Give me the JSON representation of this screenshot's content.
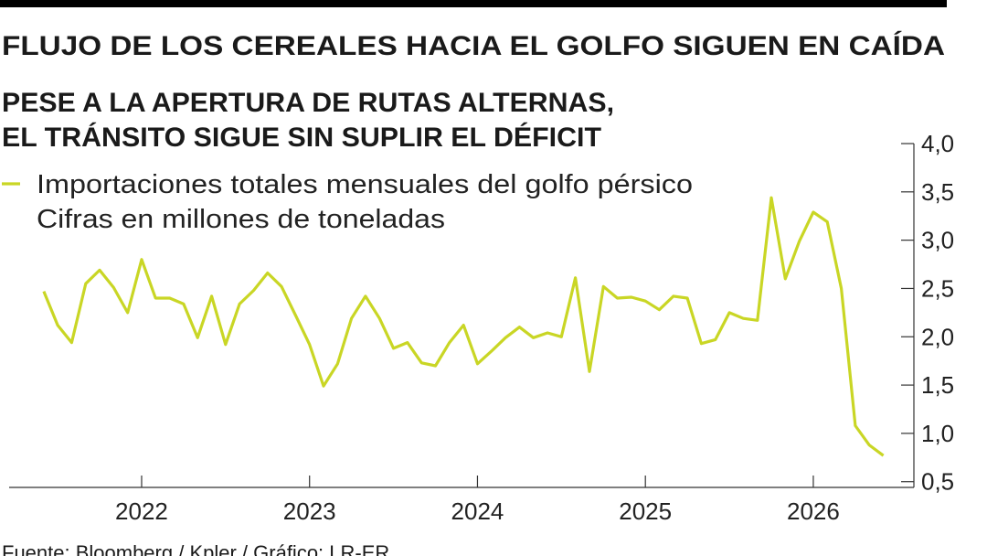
{
  "chart_data": {
    "type": "line",
    "title": "FLUJO DE LOS CEREALES HACIA EL GOLFO SIGUEN EN CAÍDA",
    "subtitle": [
      "PESE A LA APERTURA DE RUTAS ALTERNAS,",
      "EL TRÁNSITO SIGUE SIN SUPLIR EL DÉFICIT"
    ],
    "y_axis_label": "Cifras en millones de toneladas",
    "source": "Fuente: Bloomberg / Kpler / Gráfico: LR-ER",
    "x": [
      2021.417,
      2021.5,
      2021.583,
      2021.667,
      2021.75,
      2021.833,
      2021.917,
      2022.0,
      2022.083,
      2022.167,
      2022.25,
      2022.333,
      2022.417,
      2022.5,
      2022.583,
      2022.667,
      2022.75,
      2022.833,
      2022.917,
      2023.0,
      2023.083,
      2023.167,
      2023.25,
      2023.333,
      2023.417,
      2023.5,
      2023.583,
      2023.667,
      2023.75,
      2023.833,
      2023.917,
      2024.0,
      2024.083,
      2024.167,
      2024.25,
      2024.333,
      2024.417,
      2024.5,
      2024.583,
      2024.667,
      2024.75,
      2024.833,
      2024.917,
      2025.0,
      2025.083,
      2025.167,
      2025.25,
      2025.333,
      2025.417,
      2025.5,
      2025.583,
      2025.667,
      2025.75,
      2025.833,
      2025.917,
      2026.0,
      2026.083,
      2026.167,
      2026.25,
      2026.333,
      2026.417
    ],
    "series": [
      {
        "name": "Importaciones totales mensuales del golfo pérsico",
        "color": "#c9d625",
        "values": [
          2.47,
          2.12,
          1.94,
          2.55,
          2.69,
          2.51,
          2.25,
          2.8,
          2.4,
          2.4,
          2.34,
          1.99,
          2.42,
          1.92,
          2.34,
          2.48,
          2.66,
          2.52,
          2.22,
          1.92,
          1.49,
          1.72,
          2.19,
          2.42,
          2.19,
          1.88,
          1.94,
          1.73,
          1.7,
          1.94,
          2.12,
          1.72,
          1.85,
          1.99,
          2.1,
          1.99,
          2.04,
          2.0,
          2.61,
          1.64,
          2.52,
          2.4,
          2.41,
          2.37,
          2.28,
          2.42,
          2.4,
          1.93,
          1.97,
          2.25,
          2.19,
          2.17,
          3.44,
          2.6,
          2.99,
          3.29,
          3.19,
          2.5,
          1.08,
          0.88,
          0.77
        ]
      }
    ],
    "xlim": [
      2021.211,
      2026.599
    ],
    "xticks": [
      2022,
      2023,
      2024,
      2025,
      2026
    ],
    "ylim": [
      0.45,
      4.0
    ],
    "yticks": [
      {
        "value": 0.5,
        "label": "0,5"
      },
      {
        "value": 1.0,
        "label": "1,0"
      },
      {
        "value": 1.5,
        "label": "1,5"
      },
      {
        "value": 2.0,
        "label": "2,0"
      },
      {
        "value": 2.5,
        "label": "2,5"
      },
      {
        "value": 3.0,
        "label": "3,0"
      },
      {
        "value": 3.5,
        "label": "3,5"
      },
      {
        "value": 4.0,
        "label": "4,0"
      }
    ],
    "y_axis_side": "right"
  }
}
